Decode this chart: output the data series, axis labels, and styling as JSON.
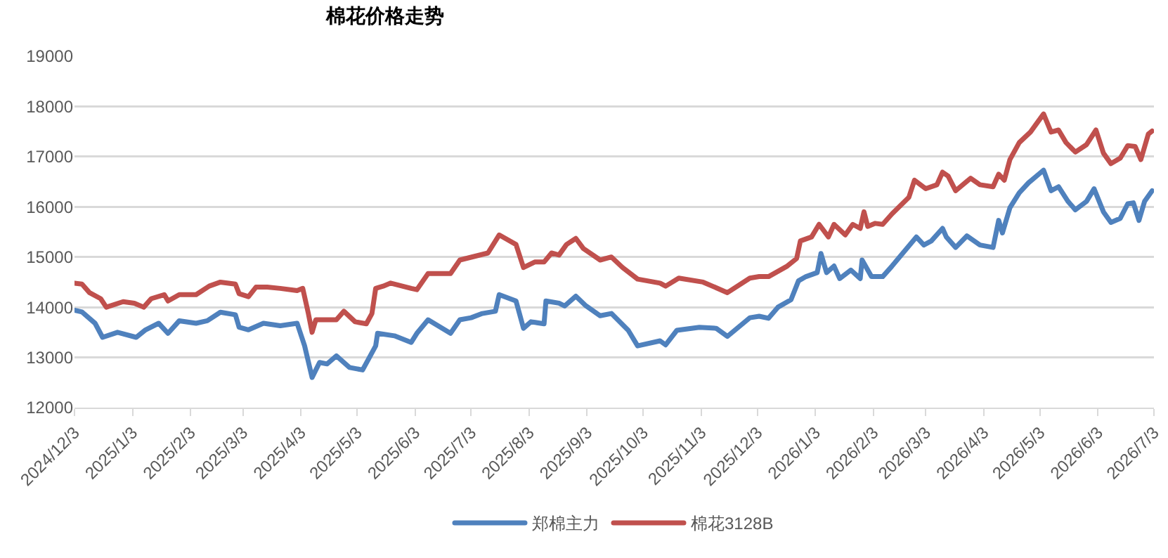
{
  "chart_data": {
    "type": "line",
    "title": "棉花价格走势",
    "xlim": [
      "2024-12-03",
      "2026-07-03"
    ],
    "xticks": [
      {
        "value": "2024-12-03",
        "label": "2024/12/3"
      },
      {
        "value": "2025-01-03",
        "label": "2025/1/3"
      },
      {
        "value": "2025-02-03",
        "label": "2025/2/3"
      },
      {
        "value": "2025-03-03",
        "label": "2025/3/3"
      },
      {
        "value": "2025-04-03",
        "label": "2025/4/3"
      },
      {
        "value": "2025-05-03",
        "label": "2025/5/3"
      },
      {
        "value": "2025-06-03",
        "label": "2025/6/3"
      },
      {
        "value": "2025-07-03",
        "label": "2025/7/3"
      },
      {
        "value": "2025-08-03",
        "label": "2025/8/3"
      },
      {
        "value": "2025-09-03",
        "label": "2025/9/3"
      },
      {
        "value": "2025-10-03",
        "label": "2025/10/3"
      },
      {
        "value": "2025-11-03",
        "label": "2025/11/3"
      },
      {
        "value": "2025-12-03",
        "label": "2025/12/3"
      },
      {
        "value": "2026-01-03",
        "label": "2026/1/3"
      },
      {
        "value": "2026-02-03",
        "label": "2026/2/3"
      },
      {
        "value": "2026-03-03",
        "label": "2026/3/3"
      },
      {
        "value": "2026-04-03",
        "label": "2026/4/3"
      },
      {
        "value": "2026-05-03",
        "label": "2026/5/3"
      },
      {
        "value": "2026-06-03",
        "label": "2026/6/3"
      },
      {
        "value": "2026-07-03",
        "label": "2026/7/3"
      }
    ],
    "ylim": [
      12000,
      19000
    ],
    "yticks": [
      12000,
      13000,
      14000,
      15000,
      16000,
      17000,
      18000,
      19000
    ],
    "grid": "y",
    "legend": "bottom",
    "marker": "none",
    "line_style": "solid",
    "series": [
      {
        "name": "郑棉主力",
        "color": "#4f81bd",
        "x": [
          "2024-12-03",
          "2024-12-07",
          "2024-12-14",
          "2024-12-18",
          "2024-12-26",
          "2025-01-05",
          "2025-01-10",
          "2025-01-17",
          "2025-01-22",
          "2025-01-28",
          "2025-02-06",
          "2025-02-12",
          "2025-02-19",
          "2025-02-27",
          "2025-03-01",
          "2025-03-06",
          "2025-03-14",
          "2025-03-23",
          "2025-04-01",
          "2025-04-05",
          "2025-04-09",
          "2025-04-13",
          "2025-04-17",
          "2025-04-22",
          "2025-04-29",
          "2025-05-06",
          "2025-05-13",
          "2025-05-14",
          "2025-05-23",
          "2025-06-01",
          "2025-06-04",
          "2025-06-10",
          "2025-06-22",
          "2025-06-27",
          "2025-07-03",
          "2025-07-09",
          "2025-07-16",
          "2025-07-18",
          "2025-07-27",
          "2025-07-31",
          "2025-08-04",
          "2025-08-11",
          "2025-08-12",
          "2025-08-19",
          "2025-08-22",
          "2025-08-28",
          "2025-09-02",
          "2025-09-10",
          "2025-09-16",
          "2025-09-25",
          "2025-09-30",
          "2025-10-12",
          "2025-10-15",
          "2025-10-21",
          "2025-11-02",
          "2025-11-11",
          "2025-11-17",
          "2025-11-29",
          "2025-12-04",
          "2025-12-09",
          "2025-12-14",
          "2025-12-21",
          "2025-12-25",
          "2025-12-29",
          "2026-01-04",
          "2026-01-06",
          "2026-01-09",
          "2026-01-13",
          "2026-01-16",
          "2026-01-22",
          "2026-01-27",
          "2026-01-28",
          "2026-02-02",
          "2026-02-08",
          "2026-02-13",
          "2026-02-26",
          "2026-03-02",
          "2026-03-06",
          "2026-03-12",
          "2026-03-14",
          "2026-03-19",
          "2026-03-25",
          "2026-04-01",
          "2026-04-08",
          "2026-04-11",
          "2026-04-13",
          "2026-04-17",
          "2026-04-22",
          "2026-04-27",
          "2026-05-05",
          "2026-05-09",
          "2026-05-13",
          "2026-05-18",
          "2026-05-22",
          "2026-05-28",
          "2026-06-01",
          "2026-06-06",
          "2026-06-10",
          "2026-06-15",
          "2026-06-19",
          "2026-06-22",
          "2026-06-25",
          "2026-06-28",
          "2026-07-02"
        ],
        "values": [
          13940,
          13905,
          13680,
          13400,
          13500,
          13400,
          13550,
          13680,
          13480,
          13730,
          13680,
          13730,
          13900,
          13850,
          13600,
          13550,
          13680,
          13630,
          13680,
          13230,
          12600,
          12900,
          12870,
          13030,
          12800,
          12750,
          13230,
          13480,
          13430,
          13300,
          13480,
          13750,
          13480,
          13750,
          13790,
          13875,
          13920,
          14250,
          14125,
          13580,
          13710,
          13670,
          14125,
          14080,
          14025,
          14220,
          14040,
          13830,
          13875,
          13540,
          13230,
          13330,
          13250,
          13540,
          13600,
          13580,
          13420,
          13790,
          13820,
          13780,
          14000,
          14150,
          14525,
          14610,
          14690,
          15070,
          14690,
          14820,
          14570,
          14740,
          14570,
          14940,
          14610,
          14610,
          14820,
          15400,
          15240,
          15320,
          15570,
          15400,
          15190,
          15420,
          15240,
          15190,
          15730,
          15480,
          15980,
          16280,
          16480,
          16730,
          16320,
          16400,
          16110,
          15940,
          16110,
          16360,
          15900,
          15690,
          15770,
          16060,
          16080,
          15730,
          16110,
          16320
        ]
      },
      {
        "name": "棉花3128B",
        "color": "#c0504d",
        "x": [
          "2024-12-03",
          "2024-12-07",
          "2024-12-11",
          "2024-12-17",
          "2024-12-20",
          "2024-12-29",
          "2025-01-04",
          "2025-01-09",
          "2025-01-13",
          "2025-01-20",
          "2025-01-22",
          "2025-01-28",
          "2025-02-06",
          "2025-02-13",
          "2025-02-19",
          "2025-02-27",
          "2025-03-01",
          "2025-03-06",
          "2025-03-10",
          "2025-03-16",
          "2025-03-23",
          "2025-04-01",
          "2025-04-04",
          "2025-04-07",
          "2025-04-09",
          "2025-04-11",
          "2025-04-22",
          "2025-04-26",
          "2025-05-02",
          "2025-05-08",
          "2025-05-11",
          "2025-05-13",
          "2025-05-17",
          "2025-05-21",
          "2025-06-01",
          "2025-06-04",
          "2025-06-10",
          "2025-06-22",
          "2025-06-27",
          "2025-07-12",
          "2025-07-18",
          "2025-07-27",
          "2025-07-31",
          "2025-08-06",
          "2025-08-11",
          "2025-08-15",
          "2025-08-19",
          "2025-08-23",
          "2025-08-28",
          "2025-09-01",
          "2025-09-10",
          "2025-09-16",
          "2025-09-22",
          "2025-09-30",
          "2025-10-12",
          "2025-10-15",
          "2025-10-22",
          "2025-11-04",
          "2025-11-17",
          "2025-11-29",
          "2025-12-04",
          "2025-12-09",
          "2025-12-19",
          "2025-12-24",
          "2025-12-26",
          "2026-01-01",
          "2026-01-05",
          "2026-01-10",
          "2026-01-13",
          "2026-01-19",
          "2026-01-23",
          "2026-01-27",
          "2026-01-29",
          "2026-01-31",
          "2026-02-04",
          "2026-02-08",
          "2026-02-13",
          "2026-02-22",
          "2026-02-25",
          "2026-03-03",
          "2026-03-09",
          "2026-03-12",
          "2026-03-15",
          "2026-03-19",
          "2026-03-27",
          "2026-04-01",
          "2026-04-08",
          "2026-04-11",
          "2026-04-14",
          "2026-04-17",
          "2026-04-22",
          "2026-04-28",
          "2026-05-05",
          "2026-05-09",
          "2026-05-13",
          "2026-05-17",
          "2026-05-22",
          "2026-05-28",
          "2026-06-02",
          "2026-06-06",
          "2026-06-10",
          "2026-06-15",
          "2026-06-19",
          "2026-06-23",
          "2026-06-26",
          "2026-06-30",
          "2026-07-02"
        ],
        "values": [
          14480,
          14460,
          14290,
          14170,
          14000,
          14110,
          14080,
          14000,
          14170,
          14250,
          14125,
          14250,
          14250,
          14420,
          14500,
          14460,
          14270,
          14210,
          14400,
          14400,
          14375,
          14330,
          14375,
          13875,
          13500,
          13750,
          13750,
          13920,
          13710,
          13670,
          13875,
          14375,
          14420,
          14480,
          14375,
          14350,
          14670,
          14670,
          14940,
          15080,
          15440,
          15250,
          14790,
          14900,
          14900,
          15080,
          15040,
          15250,
          15370,
          15170,
          14940,
          15000,
          14790,
          14560,
          14480,
          14420,
          14580,
          14500,
          14290,
          14580,
          14610,
          14610,
          14820,
          14970,
          15320,
          15400,
          15650,
          15400,
          15650,
          15440,
          15650,
          15570,
          15900,
          15610,
          15670,
          15650,
          15860,
          16190,
          16530,
          16360,
          16440,
          16690,
          16610,
          16320,
          16570,
          16440,
          16400,
          16650,
          16530,
          16940,
          17280,
          17490,
          17850,
          17490,
          17530,
          17280,
          17090,
          17240,
          17530,
          17070,
          16860,
          16970,
          17220,
          17200,
          16940,
          17450,
          17510
        ]
      }
    ]
  }
}
